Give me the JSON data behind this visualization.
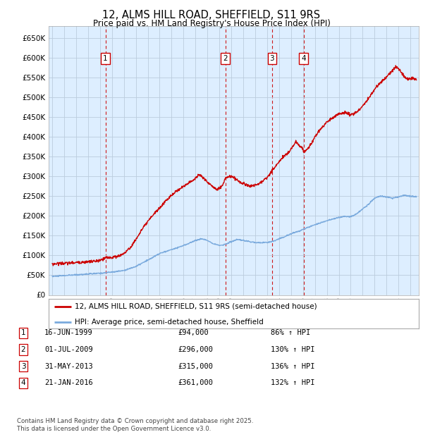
{
  "title": "12, ALMS HILL ROAD, SHEFFIELD, S11 9RS",
  "subtitle": "Price paid vs. HM Land Registry's House Price Index (HPI)",
  "legend_line1": "12, ALMS HILL ROAD, SHEFFIELD, S11 9RS (semi-detached house)",
  "legend_line2": "HPI: Average price, semi-detached house, Sheffield",
  "footer": "Contains HM Land Registry data © Crown copyright and database right 2025.\nThis data is licensed under the Open Government Licence v3.0.",
  "transactions": [
    {
      "num": 1,
      "date": "16-JUN-1999",
      "price": "£94,000",
      "hpi_pct": "86% ↑ HPI",
      "year": 1999.46
    },
    {
      "num": 2,
      "date": "01-JUL-2009",
      "price": "£296,000",
      "hpi_pct": "130% ↑ HPI",
      "year": 2009.5
    },
    {
      "num": 3,
      "date": "31-MAY-2013",
      "price": "£315,000",
      "hpi_pct": "136% ↑ HPI",
      "year": 2013.41
    },
    {
      "num": 4,
      "date": "21-JAN-2016",
      "price": "£361,000",
      "hpi_pct": "132% ↑ HPI",
      "year": 2016.05
    }
  ],
  "ylim": [
    0,
    680000
  ],
  "yticks": [
    0,
    50000,
    100000,
    150000,
    200000,
    250000,
    300000,
    350000,
    400000,
    450000,
    500000,
    550000,
    600000,
    650000
  ],
  "xlim_start": 1994.7,
  "xlim_end": 2025.7,
  "xticks": [
    1995,
    1996,
    1997,
    1998,
    1999,
    2000,
    2001,
    2002,
    2003,
    2004,
    2005,
    2006,
    2007,
    2008,
    2009,
    2010,
    2011,
    2012,
    2013,
    2014,
    2015,
    2016,
    2017,
    2018,
    2019,
    2020,
    2021,
    2022,
    2023,
    2024,
    2025
  ],
  "red_line_color": "#cc0000",
  "blue_line_color": "#7aaadd",
  "bg_color": "#ddeeff",
  "plot_bg": "#ffffff",
  "grid_color": "#bbccdd",
  "vline_color": "#cc0000",
  "box_color": "#cc0000",
  "hpi_anchors": [
    [
      1995.0,
      47000
    ],
    [
      1996.0,
      49000
    ],
    [
      1997.0,
      51000
    ],
    [
      1998.0,
      53000
    ],
    [
      1999.0,
      55000
    ],
    [
      2000.0,
      58000
    ],
    [
      2001.0,
      62000
    ],
    [
      2002.0,
      72000
    ],
    [
      2003.0,
      88000
    ],
    [
      2004.0,
      105000
    ],
    [
      2005.0,
      115000
    ],
    [
      2006.0,
      125000
    ],
    [
      2007.0,
      138000
    ],
    [
      2007.5,
      142000
    ],
    [
      2008.0,
      138000
    ],
    [
      2008.5,
      130000
    ],
    [
      2009.0,
      125000
    ],
    [
      2009.5,
      128000
    ],
    [
      2010.0,
      135000
    ],
    [
      2010.5,
      140000
    ],
    [
      2011.0,
      138000
    ],
    [
      2011.5,
      135000
    ],
    [
      2012.0,
      133000
    ],
    [
      2012.5,
      132000
    ],
    [
      2013.0,
      133000
    ],
    [
      2013.5,
      136000
    ],
    [
      2014.0,
      142000
    ],
    [
      2014.5,
      148000
    ],
    [
      2015.0,
      155000
    ],
    [
      2015.5,
      160000
    ],
    [
      2016.0,
      166000
    ],
    [
      2016.5,
      172000
    ],
    [
      2017.0,
      178000
    ],
    [
      2017.5,
      183000
    ],
    [
      2018.0,
      188000
    ],
    [
      2018.5,
      192000
    ],
    [
      2019.0,
      196000
    ],
    [
      2019.5,
      199000
    ],
    [
      2020.0,
      198000
    ],
    [
      2020.5,
      205000
    ],
    [
      2021.0,
      218000
    ],
    [
      2021.5,
      230000
    ],
    [
      2022.0,
      245000
    ],
    [
      2022.5,
      250000
    ],
    [
      2023.0,
      248000
    ],
    [
      2023.5,
      245000
    ],
    [
      2024.0,
      248000
    ],
    [
      2024.5,
      252000
    ],
    [
      2025.0,
      250000
    ],
    [
      2025.5,
      248000
    ]
  ],
  "price_anchors": [
    [
      1995.0,
      78000
    ],
    [
      1995.5,
      80000
    ],
    [
      1996.0,
      80000
    ],
    [
      1996.5,
      81000
    ],
    [
      1997.0,
      82000
    ],
    [
      1997.5,
      83000
    ],
    [
      1998.0,
      84000
    ],
    [
      1998.5,
      85000
    ],
    [
      1999.0,
      87000
    ],
    [
      1999.46,
      94000
    ],
    [
      2000.0,
      95000
    ],
    [
      2000.5,
      98000
    ],
    [
      2001.0,
      105000
    ],
    [
      2001.5,
      118000
    ],
    [
      2002.0,
      140000
    ],
    [
      2002.5,
      165000
    ],
    [
      2003.0,
      185000
    ],
    [
      2003.5,
      205000
    ],
    [
      2004.0,
      220000
    ],
    [
      2004.5,
      238000
    ],
    [
      2005.0,
      252000
    ],
    [
      2005.5,
      265000
    ],
    [
      2006.0,
      275000
    ],
    [
      2006.5,
      285000
    ],
    [
      2007.0,
      295000
    ],
    [
      2007.3,
      305000
    ],
    [
      2007.5,
      300000
    ],
    [
      2007.8,
      292000
    ],
    [
      2008.0,
      285000
    ],
    [
      2008.3,
      278000
    ],
    [
      2008.7,
      268000
    ],
    [
      2009.0,
      270000
    ],
    [
      2009.3,
      278000
    ],
    [
      2009.5,
      296000
    ],
    [
      2009.7,
      298000
    ],
    [
      2010.0,
      300000
    ],
    [
      2010.3,
      295000
    ],
    [
      2010.7,
      286000
    ],
    [
      2011.0,
      282000
    ],
    [
      2011.3,
      278000
    ],
    [
      2011.7,
      275000
    ],
    [
      2012.0,
      278000
    ],
    [
      2012.5,
      285000
    ],
    [
      2013.0,
      298000
    ],
    [
      2013.2,
      305000
    ],
    [
      2013.41,
      315000
    ],
    [
      2013.7,
      325000
    ],
    [
      2014.0,
      338000
    ],
    [
      2014.3,
      348000
    ],
    [
      2014.7,
      358000
    ],
    [
      2015.0,
      370000
    ],
    [
      2015.2,
      378000
    ],
    [
      2015.4,
      388000
    ],
    [
      2015.6,
      382000
    ],
    [
      2015.8,
      375000
    ],
    [
      2016.0,
      370000
    ],
    [
      2016.05,
      361000
    ],
    [
      2016.3,
      368000
    ],
    [
      2016.7,
      382000
    ],
    [
      2017.0,
      400000
    ],
    [
      2017.5,
      420000
    ],
    [
      2018.0,
      438000
    ],
    [
      2018.5,
      448000
    ],
    [
      2019.0,
      458000
    ],
    [
      2019.5,
      462000
    ],
    [
      2020.0,
      455000
    ],
    [
      2020.5,
      462000
    ],
    [
      2021.0,
      478000
    ],
    [
      2021.5,
      498000
    ],
    [
      2022.0,
      520000
    ],
    [
      2022.5,
      538000
    ],
    [
      2023.0,
      552000
    ],
    [
      2023.3,
      562000
    ],
    [
      2023.6,
      572000
    ],
    [
      2023.8,
      578000
    ],
    [
      2024.0,
      572000
    ],
    [
      2024.3,
      560000
    ],
    [
      2024.6,
      548000
    ],
    [
      2024.9,
      545000
    ],
    [
      2025.2,
      548000
    ],
    [
      2025.5,
      545000
    ]
  ]
}
